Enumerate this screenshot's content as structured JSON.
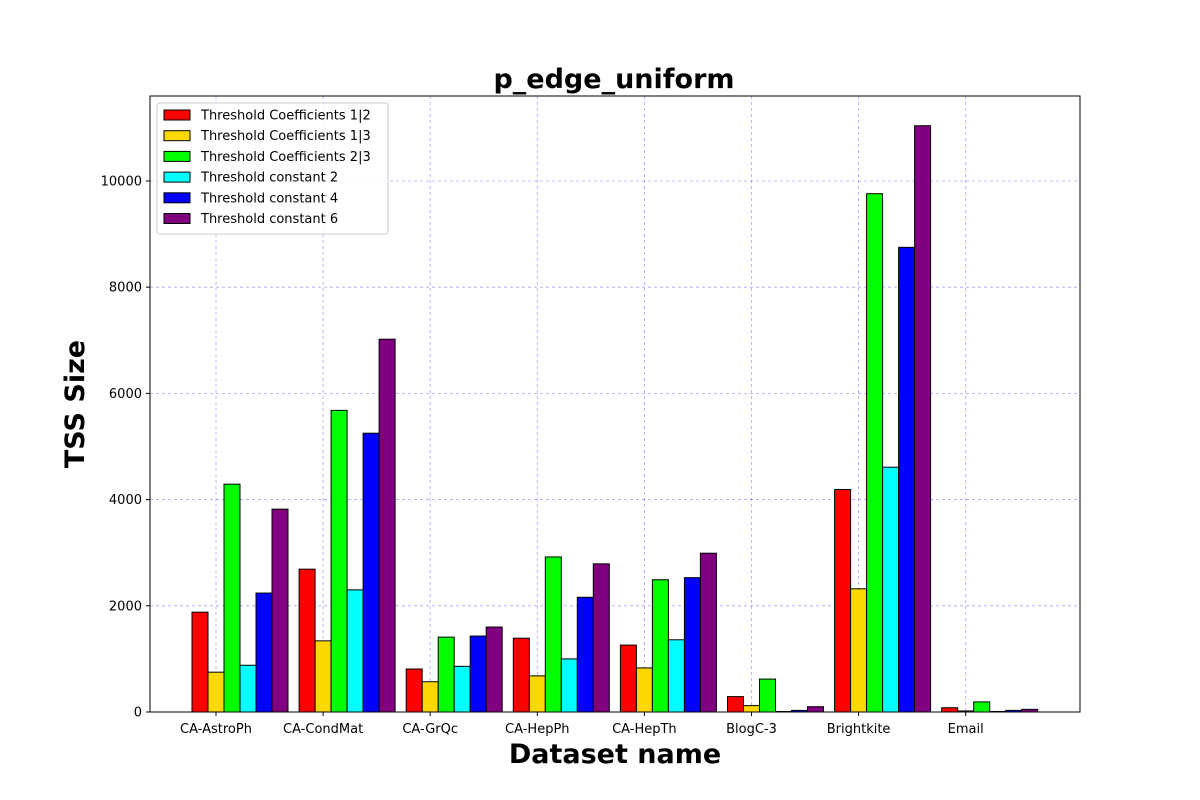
{
  "chart_data": {
    "type": "bar",
    "title": "p_edge_uniform",
    "xlabel": "Dataset name",
    "ylabel": "TSS Size",
    "categories": [
      "CA-AstroPh",
      "CA-CondMat",
      "CA-GrQc",
      "CA-HepPh",
      "CA-HepTh",
      "BlogC-3",
      "Brightkite",
      "Email"
    ],
    "y_ticks": [
      0,
      2000,
      4000,
      6000,
      8000,
      10000
    ],
    "ylim": [
      0,
      11600
    ],
    "grid": true,
    "legend_position": "top-left",
    "series": [
      {
        "name": "Threshold Coefficients 1|2",
        "color": "#ff0000",
        "values": [
          1880,
          2690,
          810,
          1390,
          1260,
          290,
          4190,
          80
        ]
      },
      {
        "name": "Threshold Coefficients 1|3",
        "color": "#ffd700",
        "values": [
          750,
          1340,
          570,
          680,
          830,
          120,
          2320,
          20
        ]
      },
      {
        "name": "Threshold Coefficients 2|3",
        "color": "#00ff00",
        "values": [
          4290,
          5680,
          1410,
          2920,
          2490,
          620,
          9760,
          190
        ]
      },
      {
        "name": "Threshold constant 2",
        "color": "#00ffff",
        "values": [
          880,
          2300,
          860,
          1000,
          1360,
          10,
          4610,
          10
        ]
      },
      {
        "name": "Threshold constant 4",
        "color": "#0000ff",
        "values": [
          2240,
          5250,
          1430,
          2160,
          2530,
          30,
          8750,
          30
        ]
      },
      {
        "name": "Threshold constant 6",
        "color": "#800080",
        "values": [
          3820,
          7020,
          1600,
          2790,
          2990,
          100,
          11040,
          50
        ]
      }
    ]
  }
}
